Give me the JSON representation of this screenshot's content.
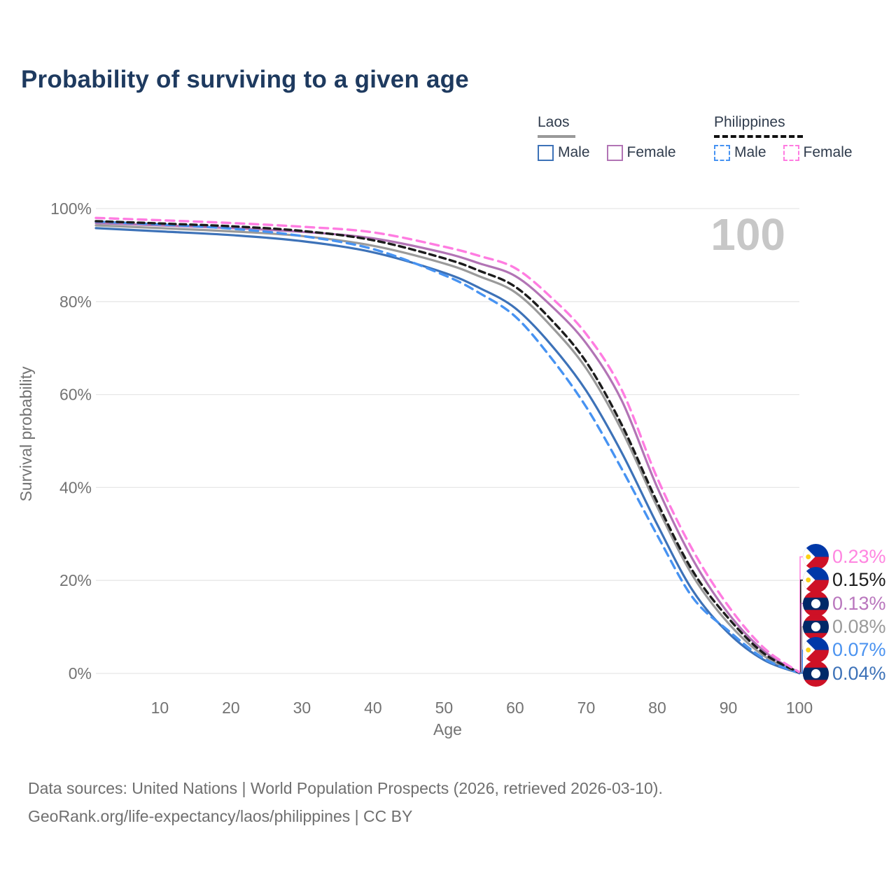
{
  "title": "Probability of surviving to a given age",
  "legend": {
    "groups": [
      {
        "label": "Laos",
        "underline_style": "solid",
        "underline_color": "#999999",
        "items": [
          {
            "label": "Male",
            "color": "#3d72b8",
            "dashed": false
          },
          {
            "label": "Female",
            "color": "#b274b5",
            "dashed": false
          }
        ]
      },
      {
        "label": "Philippines",
        "underline_style": "dashed",
        "underline_color": "#111111",
        "items": [
          {
            "label": "Male",
            "color": "#4793f2",
            "dashed": true
          },
          {
            "label": "Female",
            "color": "#ff7ce1",
            "dashed": true
          }
        ]
      }
    ]
  },
  "watermark": "100",
  "chart_data": {
    "type": "line",
    "title": "Probability of surviving to a given age",
    "xlabel": "Age",
    "ylabel": "Survival probability",
    "xlim": [
      1,
      100
    ],
    "ylim": [
      0,
      100
    ],
    "x_ticks": [
      10,
      20,
      30,
      40,
      50,
      60,
      70,
      80,
      90,
      100
    ],
    "y_ticks": [
      0,
      20,
      40,
      60,
      80,
      100
    ],
    "y_tick_suffix": "%",
    "grid": "horizontal",
    "ages": [
      1,
      10,
      20,
      30,
      40,
      50,
      55,
      60,
      65,
      70,
      75,
      80,
      85,
      90,
      95,
      100
    ],
    "series": [
      {
        "name": "Laos Male",
        "country": "laos",
        "sex": "male",
        "color": "#3d72b8",
        "dashed": false,
        "values": [
          95.8,
          95.1,
          94.3,
          93.0,
          90.6,
          86.2,
          82.9,
          78.6,
          70.8,
          60.8,
          47.5,
          32.0,
          17.8,
          8.7,
          2.9,
          0.04
        ],
        "end_label": "0.04%",
        "end_color": "#3d72b8",
        "flag": "laos"
      },
      {
        "name": "Laos Both sexes",
        "country": "laos",
        "sex": "total",
        "color": "#9a9a9a",
        "dashed": false,
        "values": [
          96.4,
          95.8,
          95.1,
          94.1,
          92.0,
          88.2,
          85.4,
          82.0,
          74.8,
          65.6,
          52.3,
          35.8,
          21.0,
          10.8,
          3.8,
          0.08
        ],
        "end_label": "0.08%",
        "end_color": "#9a9a9a",
        "flag": "laos"
      },
      {
        "name": "Laos Female",
        "country": "laos",
        "sex": "female",
        "color": "#b274b5",
        "dashed": false,
        "values": [
          96.9,
          96.4,
          95.8,
          95.0,
          93.6,
          90.5,
          88.2,
          85.5,
          79.2,
          71.0,
          58.7,
          40.0,
          24.5,
          12.9,
          4.8,
          0.13
        ],
        "end_label": "0.13%",
        "end_color": "#b976bd",
        "flag": "laos"
      },
      {
        "name": "Philippines Male",
        "country": "philippines",
        "sex": "male",
        "color": "#4793f2",
        "dashed": true,
        "values": [
          97.2,
          96.6,
          95.7,
          94.1,
          91.3,
          85.7,
          81.8,
          76.8,
          68.0,
          57.3,
          44.0,
          29.7,
          16.3,
          9.2,
          3.2,
          0.07
        ],
        "end_label": "0.07%",
        "end_color": "#4b93f0",
        "flag": "philippines"
      },
      {
        "name": "Philippines Both sexes",
        "country": "philippines",
        "sex": "total",
        "color": "#1c1c1c",
        "dashed": true,
        "values": [
          97.3,
          96.8,
          96.2,
          95.2,
          93.2,
          89.3,
          86.6,
          83.2,
          76.2,
          67.0,
          53.5,
          36.8,
          22.0,
          11.9,
          4.3,
          0.15
        ],
        "end_label": "0.15%",
        "end_color": "#1c1c1c",
        "flag": "philippines"
      },
      {
        "name": "Philippines Female",
        "country": "philippines",
        "sex": "female",
        "color": "#ff7ce1",
        "dashed": true,
        "values": [
          98.0,
          97.5,
          96.9,
          96.1,
          94.9,
          91.8,
          89.8,
          87.2,
          81.0,
          73.0,
          61.0,
          42.0,
          26.5,
          14.5,
          5.5,
          0.23
        ],
        "end_label": "0.23%",
        "end_color": "#ff85e0",
        "flag": "philippines"
      }
    ],
    "legend_position": "top-right",
    "annotations": {
      "age_counter": "100"
    }
  },
  "footer": {
    "line1": "Data sources: United Nations | World Population Prospects (2026, retrieved 2026-03-10).",
    "line2": "GeoRank.org/life-expectancy/laos/philippines | CC BY"
  }
}
